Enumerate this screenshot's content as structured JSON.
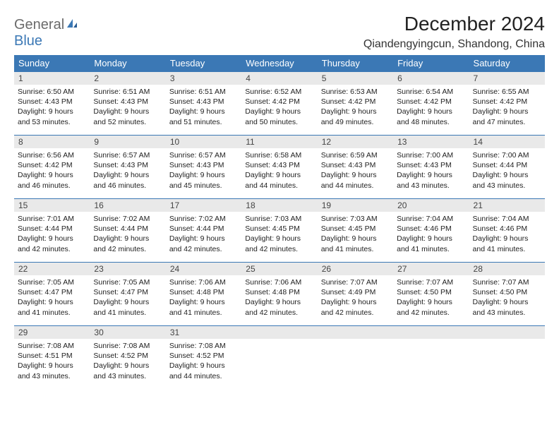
{
  "logo": {
    "text1": "General",
    "text2": "Blue"
  },
  "header": {
    "month_title": "December 2024",
    "location": "Qiandengyingcun, Shandong, China"
  },
  "colors": {
    "header_bg": "#3b78b5",
    "header_fg": "#ffffff",
    "daynum_bg": "#e9e9e9",
    "row_border": "#3b78b5",
    "logo_gray": "#6b6b6b",
    "logo_blue": "#3b78b5"
  },
  "weekdays": [
    "Sunday",
    "Monday",
    "Tuesday",
    "Wednesday",
    "Thursday",
    "Friday",
    "Saturday"
  ],
  "weeks": [
    [
      {
        "n": "1",
        "sr": "6:50 AM",
        "ss": "4:43 PM",
        "dl": "9 hours and 53 minutes."
      },
      {
        "n": "2",
        "sr": "6:51 AM",
        "ss": "4:43 PM",
        "dl": "9 hours and 52 minutes."
      },
      {
        "n": "3",
        "sr": "6:51 AM",
        "ss": "4:43 PM",
        "dl": "9 hours and 51 minutes."
      },
      {
        "n": "4",
        "sr": "6:52 AM",
        "ss": "4:42 PM",
        "dl": "9 hours and 50 minutes."
      },
      {
        "n": "5",
        "sr": "6:53 AM",
        "ss": "4:42 PM",
        "dl": "9 hours and 49 minutes."
      },
      {
        "n": "6",
        "sr": "6:54 AM",
        "ss": "4:42 PM",
        "dl": "9 hours and 48 minutes."
      },
      {
        "n": "7",
        "sr": "6:55 AM",
        "ss": "4:42 PM",
        "dl": "9 hours and 47 minutes."
      }
    ],
    [
      {
        "n": "8",
        "sr": "6:56 AM",
        "ss": "4:42 PM",
        "dl": "9 hours and 46 minutes."
      },
      {
        "n": "9",
        "sr": "6:57 AM",
        "ss": "4:43 PM",
        "dl": "9 hours and 46 minutes."
      },
      {
        "n": "10",
        "sr": "6:57 AM",
        "ss": "4:43 PM",
        "dl": "9 hours and 45 minutes."
      },
      {
        "n": "11",
        "sr": "6:58 AM",
        "ss": "4:43 PM",
        "dl": "9 hours and 44 minutes."
      },
      {
        "n": "12",
        "sr": "6:59 AM",
        "ss": "4:43 PM",
        "dl": "9 hours and 44 minutes."
      },
      {
        "n": "13",
        "sr": "7:00 AM",
        "ss": "4:43 PM",
        "dl": "9 hours and 43 minutes."
      },
      {
        "n": "14",
        "sr": "7:00 AM",
        "ss": "4:44 PM",
        "dl": "9 hours and 43 minutes."
      }
    ],
    [
      {
        "n": "15",
        "sr": "7:01 AM",
        "ss": "4:44 PM",
        "dl": "9 hours and 42 minutes."
      },
      {
        "n": "16",
        "sr": "7:02 AM",
        "ss": "4:44 PM",
        "dl": "9 hours and 42 minutes."
      },
      {
        "n": "17",
        "sr": "7:02 AM",
        "ss": "4:44 PM",
        "dl": "9 hours and 42 minutes."
      },
      {
        "n": "18",
        "sr": "7:03 AM",
        "ss": "4:45 PM",
        "dl": "9 hours and 42 minutes."
      },
      {
        "n": "19",
        "sr": "7:03 AM",
        "ss": "4:45 PM",
        "dl": "9 hours and 41 minutes."
      },
      {
        "n": "20",
        "sr": "7:04 AM",
        "ss": "4:46 PM",
        "dl": "9 hours and 41 minutes."
      },
      {
        "n": "21",
        "sr": "7:04 AM",
        "ss": "4:46 PM",
        "dl": "9 hours and 41 minutes."
      }
    ],
    [
      {
        "n": "22",
        "sr": "7:05 AM",
        "ss": "4:47 PM",
        "dl": "9 hours and 41 minutes."
      },
      {
        "n": "23",
        "sr": "7:05 AM",
        "ss": "4:47 PM",
        "dl": "9 hours and 41 minutes."
      },
      {
        "n": "24",
        "sr": "7:06 AM",
        "ss": "4:48 PM",
        "dl": "9 hours and 41 minutes."
      },
      {
        "n": "25",
        "sr": "7:06 AM",
        "ss": "4:48 PM",
        "dl": "9 hours and 42 minutes."
      },
      {
        "n": "26",
        "sr": "7:07 AM",
        "ss": "4:49 PM",
        "dl": "9 hours and 42 minutes."
      },
      {
        "n": "27",
        "sr": "7:07 AM",
        "ss": "4:50 PM",
        "dl": "9 hours and 42 minutes."
      },
      {
        "n": "28",
        "sr": "7:07 AM",
        "ss": "4:50 PM",
        "dl": "9 hours and 43 minutes."
      }
    ],
    [
      {
        "n": "29",
        "sr": "7:08 AM",
        "ss": "4:51 PM",
        "dl": "9 hours and 43 minutes."
      },
      {
        "n": "30",
        "sr": "7:08 AM",
        "ss": "4:52 PM",
        "dl": "9 hours and 43 minutes."
      },
      {
        "n": "31",
        "sr": "7:08 AM",
        "ss": "4:52 PM",
        "dl": "9 hours and 44 minutes."
      },
      null,
      null,
      null,
      null
    ]
  ],
  "labels": {
    "sunrise": "Sunrise:",
    "sunset": "Sunset:",
    "daylight": "Daylight:"
  }
}
